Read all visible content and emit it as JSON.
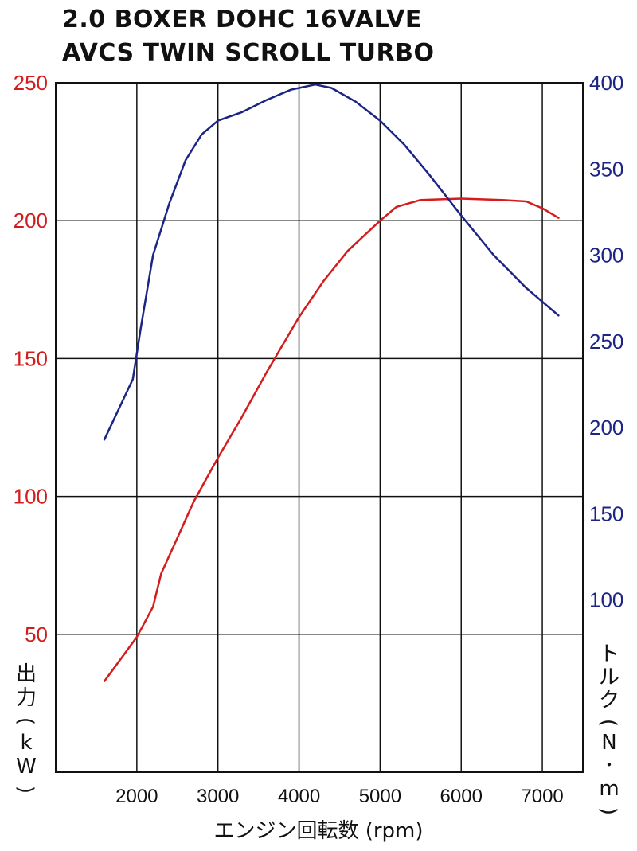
{
  "chart_data": {
    "type": "line",
    "title_lines": [
      "2.0 BOXER DOHC 16VALVE",
      "AVCS TWIN SCROLL TURBO"
    ],
    "xlabel": "エンジン回転数 (rpm)",
    "ylabel_left_chars": [
      "出",
      "力",
      "(",
      "k",
      "W",
      ")"
    ],
    "ylabel_right_chars": [
      "ト",
      "ル",
      "ク",
      "(",
      "N",
      "･",
      "m",
      ")"
    ],
    "xlim": [
      1000,
      7500
    ],
    "x_ticks": [
      2000,
      3000,
      4000,
      5000,
      6000,
      7000
    ],
    "y_left_lim": [
      0,
      250
    ],
    "y_left_ticks": [
      50,
      100,
      150,
      200,
      250
    ],
    "y_right_lim": [
      0,
      400
    ],
    "y_right_ticks": [
      100,
      150,
      200,
      250,
      300,
      350,
      400
    ],
    "grid": true,
    "colors": {
      "power": "#d41c1c",
      "torque": "#1c2585",
      "grid": "#111111"
    },
    "series": [
      {
        "axis": "left",
        "color": "#d41c1c",
        "x": [
          1600,
          1800,
          2000,
          2200,
          2300,
          2500,
          2700,
          3000,
          3300,
          3600,
          4000,
          4300,
          4600,
          5000,
          5200,
          5500,
          6000,
          6500,
          6800,
          7000,
          7200
        ],
        "values": [
          33,
          41,
          49,
          60,
          72,
          85,
          98,
          114,
          129,
          145,
          165,
          178,
          189,
          200,
          205,
          207.5,
          208,
          207.5,
          207,
          204.5,
          201
        ]
      },
      {
        "axis": "right",
        "color": "#1c2585",
        "x": [
          1600,
          1800,
          1950,
          2050,
          2200,
          2400,
          2600,
          2800,
          3000,
          3300,
          3600,
          3900,
          4200,
          4400,
          4700,
          5000,
          5300,
          5600,
          6000,
          6400,
          6800,
          7200
        ],
        "values": [
          193,
          213,
          228,
          258,
          300,
          330,
          355,
          370,
          378,
          383,
          390,
          396,
          399,
          397,
          389,
          378,
          364,
          347,
          323,
          300,
          281,
          265
        ]
      }
    ]
  }
}
